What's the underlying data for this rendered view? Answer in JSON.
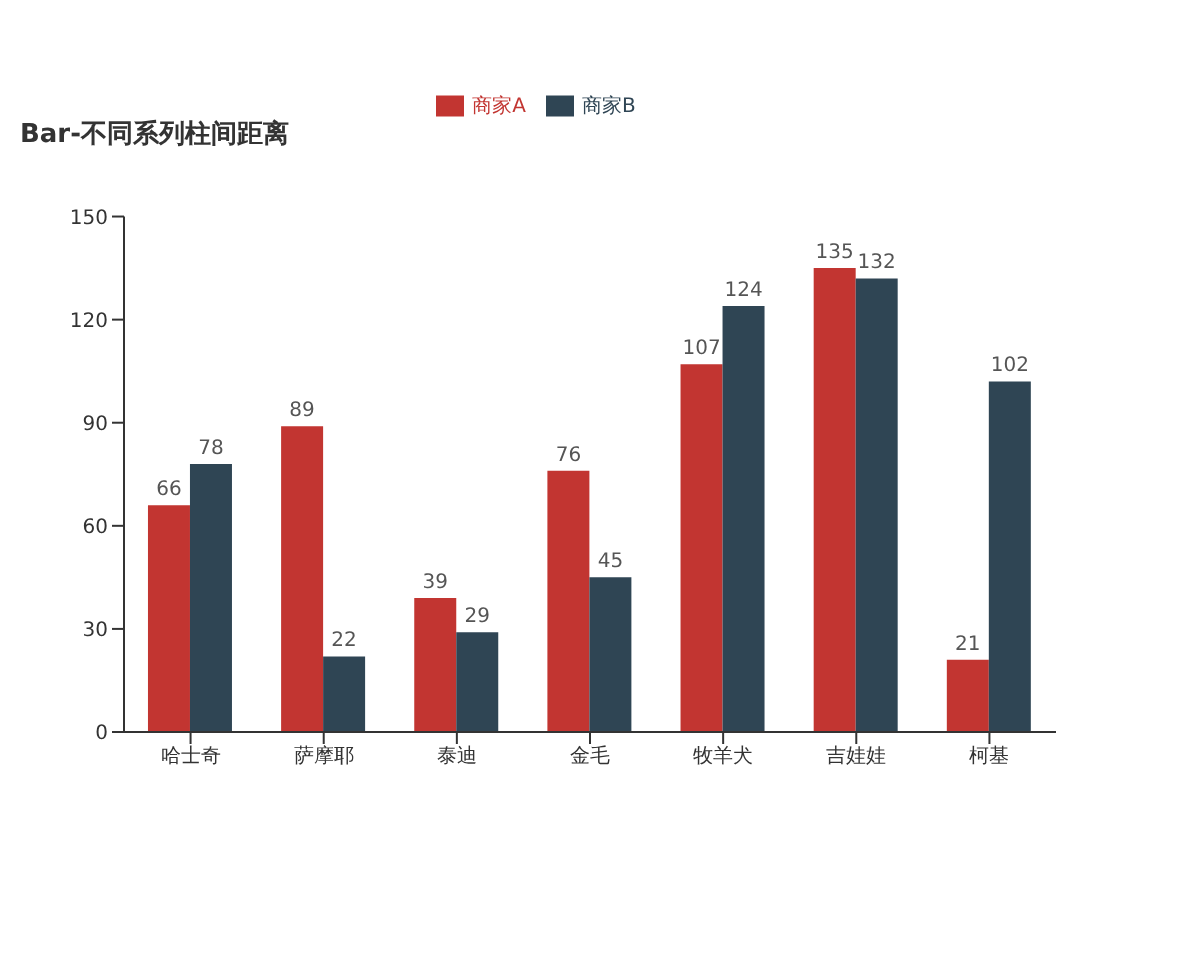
{
  "chart_data": {
    "type": "bar",
    "title": "Bar-不同系列柱间距离",
    "categories": [
      "哈士奇",
      "萨摩耶",
      "泰迪",
      "金毛",
      "牧羊犬",
      "吉娃娃",
      "柯基"
    ],
    "series": [
      {
        "name": "商家A",
        "color": "#c23531",
        "values": [
          66,
          89,
          39,
          76,
          107,
          135,
          21
        ]
      },
      {
        "name": "商家B",
        "color": "#2f4554",
        "values": [
          78,
          22,
          29,
          45,
          124,
          132,
          102
        ]
      }
    ],
    "ylim": [
      0,
      150
    ],
    "yticks": [
      0,
      30,
      60,
      90,
      120,
      150
    ],
    "grid": false,
    "legend": "top",
    "data_labels": true
  }
}
